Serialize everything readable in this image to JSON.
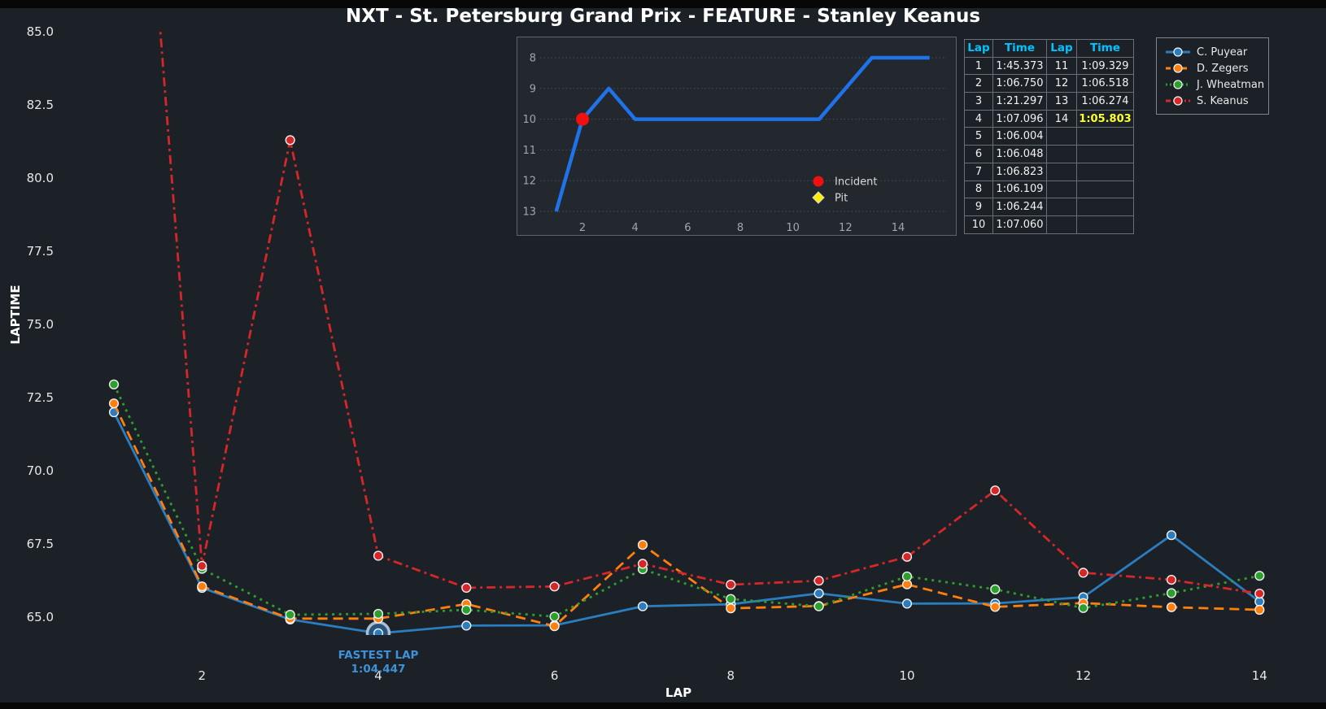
{
  "title": "NXT - St. Petersburg Grand Prix - FEATURE - Stanley Keanus",
  "colors": {
    "background": "#1c2027",
    "inset_background": "#23272e",
    "header_cyan": "#00c3ff",
    "best_lap_yellow": "#ffff2e",
    "fastest_annotation_blue": "#3e92d8",
    "inset_line_blue": "#1f72e8",
    "incident_red": "#f01010",
    "pit_yellow": "#ffee00"
  },
  "chart_data": [
    {
      "type": "line",
      "title": "NXT - St. Petersburg Grand Prix - FEATURE - Stanley Keanus",
      "xlabel": "LAP",
      "ylabel": "LAPTIME",
      "x": [
        1,
        2,
        3,
        4,
        5,
        6,
        7,
        8,
        9,
        10,
        11,
        12,
        13,
        14
      ],
      "xticks": [
        2,
        4,
        6,
        8,
        10,
        12,
        14
      ],
      "yticks": [
        65.0,
        67.5,
        70.0,
        72.5,
        75.0,
        77.5,
        80.0,
        82.5,
        85.0
      ],
      "ylim": [
        63.9,
        85.8
      ],
      "grid": false,
      "legend_position": "upper right",
      "series": [
        {
          "name": "C. Puyear",
          "color": "#2a7dbe",
          "dash": "solid",
          "values": [
            72.0,
            66.0,
            64.92,
            64.447,
            64.71,
            64.72,
            65.37,
            65.44,
            65.81,
            65.46,
            65.47,
            65.68,
            67.8,
            65.53
          ]
        },
        {
          "name": "D. Zegers",
          "color": "#ff7f0e",
          "dash": "dashed",
          "values": [
            72.3,
            66.05,
            64.95,
            64.95,
            65.45,
            64.69,
            67.47,
            65.3,
            65.38,
            66.12,
            65.35,
            65.48,
            65.34,
            65.25
          ]
        },
        {
          "name": "J. Wheatman",
          "color": "#2ca02c",
          "dash": "dotted",
          "values": [
            72.95,
            66.65,
            65.08,
            65.11,
            65.25,
            65.02,
            66.64,
            65.62,
            65.37,
            66.39,
            65.95,
            65.31,
            65.82,
            66.41
          ]
        },
        {
          "name": "S. Keanus",
          "color": "#d62728",
          "dash": "dashdot",
          "values": [
            105.373,
            66.75,
            81.297,
            67.096,
            66.004,
            66.048,
            66.823,
            66.109,
            66.244,
            67.06,
            69.329,
            66.518,
            66.274,
            65.803
          ]
        }
      ],
      "annotation": {
        "label": "FASTEST LAP",
        "value": "1:04.447",
        "lap": 4,
        "series": "C. Puyear",
        "laptime": 64.447
      }
    },
    {
      "type": "line",
      "title": "",
      "xlabel": "",
      "ylabel": "",
      "x": [
        1,
        2,
        3,
        4,
        5,
        6,
        7,
        8,
        9,
        10,
        11,
        12,
        13,
        14
      ],
      "values": [
        13,
        10,
        9,
        10,
        10,
        10,
        10,
        10,
        10,
        10,
        10,
        9,
        8,
        8
      ],
      "extend_flat_to_x": 15.2,
      "xticks": [
        2,
        4,
        6,
        8,
        10,
        12,
        14
      ],
      "yticks": [
        8,
        9,
        10,
        11,
        12,
        13
      ],
      "y_axis_inverted": true,
      "grid": "horizontal-dotted",
      "incident": {
        "lap": 2,
        "position": 10
      },
      "legend": [
        {
          "marker": "circle",
          "color": "#f01010",
          "label": "Incident"
        },
        {
          "marker": "diamond",
          "color": "#ffee00",
          "label": "Pit"
        }
      ]
    }
  ],
  "lap_table": {
    "headers": [
      "Lap",
      "Time",
      "Lap",
      "Time"
    ],
    "rows": [
      [
        "1",
        "1:45.373",
        "11",
        "1:09.329"
      ],
      [
        "2",
        "1:06.750",
        "12",
        "1:06.518"
      ],
      [
        "3",
        "1:21.297",
        "13",
        "1:06.274"
      ],
      [
        "4",
        "1:07.096",
        "14",
        "1:05.803"
      ],
      [
        "5",
        "1:06.004",
        "",
        ""
      ],
      [
        "6",
        "1:06.048",
        "",
        ""
      ],
      [
        "7",
        "1:06.823",
        "",
        ""
      ],
      [
        "8",
        "1:06.109",
        "",
        ""
      ],
      [
        "9",
        "1:06.244",
        "",
        ""
      ],
      [
        "10",
        "1:07.060",
        "",
        ""
      ]
    ],
    "best_cell": {
      "row": 3,
      "col": 3
    }
  },
  "driver_legend": [
    {
      "label": "C. Puyear",
      "color": "#2a7dbe",
      "dash": "solid"
    },
    {
      "label": "D. Zegers",
      "color": "#ff7f0e",
      "dash": "dashed"
    },
    {
      "label": "J. Wheatman",
      "color": "#2ca02c",
      "dash": "dotted"
    },
    {
      "label": "S. Keanus",
      "color": "#d62728",
      "dash": "dashdot"
    }
  ],
  "fastest_lap": {
    "label": "FASTEST LAP",
    "value": "1:04.447"
  }
}
